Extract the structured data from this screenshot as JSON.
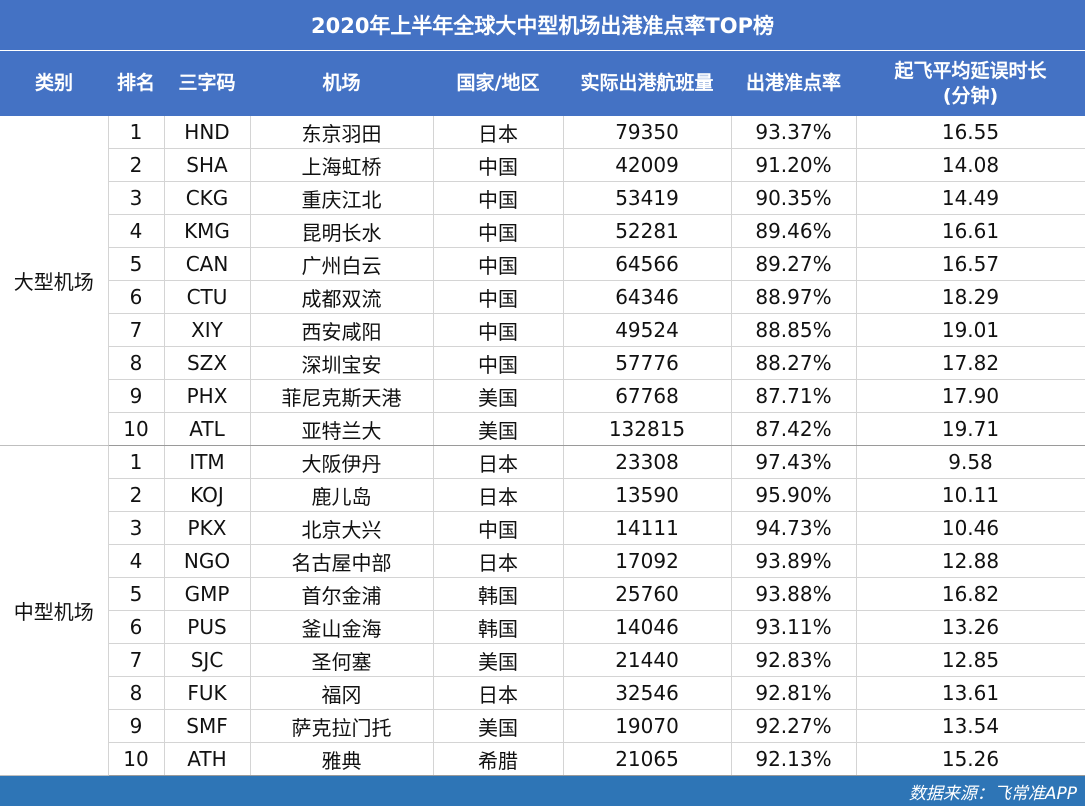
{
  "title": "2020年上半年全球大中型机场出港准点率TOP榜",
  "source": "数据来源：飞常准APP",
  "headers": {
    "category": "类别",
    "rank": "排名",
    "code": "三字码",
    "airport": "机场",
    "country": "国家/地区",
    "flights": "实际出港航班量",
    "ontime": "出港准点率",
    "delay_line1": "起飞平均延误时长",
    "delay_line2": "(分钟)"
  },
  "groups": [
    {
      "label": "大型机场",
      "rows": [
        {
          "rank": "1",
          "code": "HND",
          "airport": "东京羽田",
          "country": "日本",
          "flights": "79350",
          "ontime": "93.37%",
          "delay": "16.55"
        },
        {
          "rank": "2",
          "code": "SHA",
          "airport": "上海虹桥",
          "country": "中国",
          "flights": "42009",
          "ontime": "91.20%",
          "delay": "14.08"
        },
        {
          "rank": "3",
          "code": "CKG",
          "airport": "重庆江北",
          "country": "中国",
          "flights": "53419",
          "ontime": "90.35%",
          "delay": "14.49"
        },
        {
          "rank": "4",
          "code": "KMG",
          "airport": "昆明长水",
          "country": "中国",
          "flights": "52281",
          "ontime": "89.46%",
          "delay": "16.61"
        },
        {
          "rank": "5",
          "code": "CAN",
          "airport": "广州白云",
          "country": "中国",
          "flights": "64566",
          "ontime": "89.27%",
          "delay": "16.57"
        },
        {
          "rank": "6",
          "code": "CTU",
          "airport": "成都双流",
          "country": "中国",
          "flights": "64346",
          "ontime": "88.97%",
          "delay": "18.29"
        },
        {
          "rank": "7",
          "code": "XIY",
          "airport": "西安咸阳",
          "country": "中国",
          "flights": "49524",
          "ontime": "88.85%",
          "delay": "19.01"
        },
        {
          "rank": "8",
          "code": "SZX",
          "airport": "深圳宝安",
          "country": "中国",
          "flights": "57776",
          "ontime": "88.27%",
          "delay": "17.82"
        },
        {
          "rank": "9",
          "code": "PHX",
          "airport": "菲尼克斯天港",
          "country": "美国",
          "flights": "67768",
          "ontime": "87.71%",
          "delay": "17.90"
        },
        {
          "rank": "10",
          "code": "ATL",
          "airport": "亚特兰大",
          "country": "美国",
          "flights": "132815",
          "ontime": "87.42%",
          "delay": "19.71"
        }
      ]
    },
    {
      "label": "中型机场",
      "rows": [
        {
          "rank": "1",
          "code": "ITM",
          "airport": "大阪伊丹",
          "country": "日本",
          "flights": "23308",
          "ontime": "97.43%",
          "delay": "9.58"
        },
        {
          "rank": "2",
          "code": "KOJ",
          "airport": "鹿儿岛",
          "country": "日本",
          "flights": "13590",
          "ontime": "95.90%",
          "delay": "10.11"
        },
        {
          "rank": "3",
          "code": "PKX",
          "airport": "北京大兴",
          "country": "中国",
          "flights": "14111",
          "ontime": "94.73%",
          "delay": "10.46"
        },
        {
          "rank": "4",
          "code": "NGO",
          "airport": "名古屋中部",
          "country": "日本",
          "flights": "17092",
          "ontime": "93.89%",
          "delay": "12.88"
        },
        {
          "rank": "5",
          "code": "GMP",
          "airport": "首尔金浦",
          "country": "韩国",
          "flights": "25760",
          "ontime": "93.88%",
          "delay": "16.82"
        },
        {
          "rank": "6",
          "code": "PUS",
          "airport": "釜山金海",
          "country": "韩国",
          "flights": "14046",
          "ontime": "93.11%",
          "delay": "13.26"
        },
        {
          "rank": "7",
          "code": "SJC",
          "airport": "圣何塞",
          "country": "美国",
          "flights": "21440",
          "ontime": "92.83%",
          "delay": "12.85"
        },
        {
          "rank": "8",
          "code": "FUK",
          "airport": "福冈",
          "country": "日本",
          "flights": "32546",
          "ontime": "92.81%",
          "delay": "13.61"
        },
        {
          "rank": "9",
          "code": "SMF",
          "airport": "萨克拉门托",
          "country": "美国",
          "flights": "19070",
          "ontime": "92.27%",
          "delay": "13.54"
        },
        {
          "rank": "10",
          "code": "ATH",
          "airport": "雅典",
          "country": "希腊",
          "flights": "21065",
          "ontime": "92.13%",
          "delay": "15.26"
        }
      ]
    }
  ],
  "chart_data": {
    "type": "table",
    "title": "2020年上半年全球大中型机场出港准点率TOP榜",
    "columns": [
      "类别",
      "排名",
      "三字码",
      "机场",
      "国家/地区",
      "实际出港航班量",
      "出港准点率",
      "起飞平均延误时长(分钟)"
    ]
  }
}
